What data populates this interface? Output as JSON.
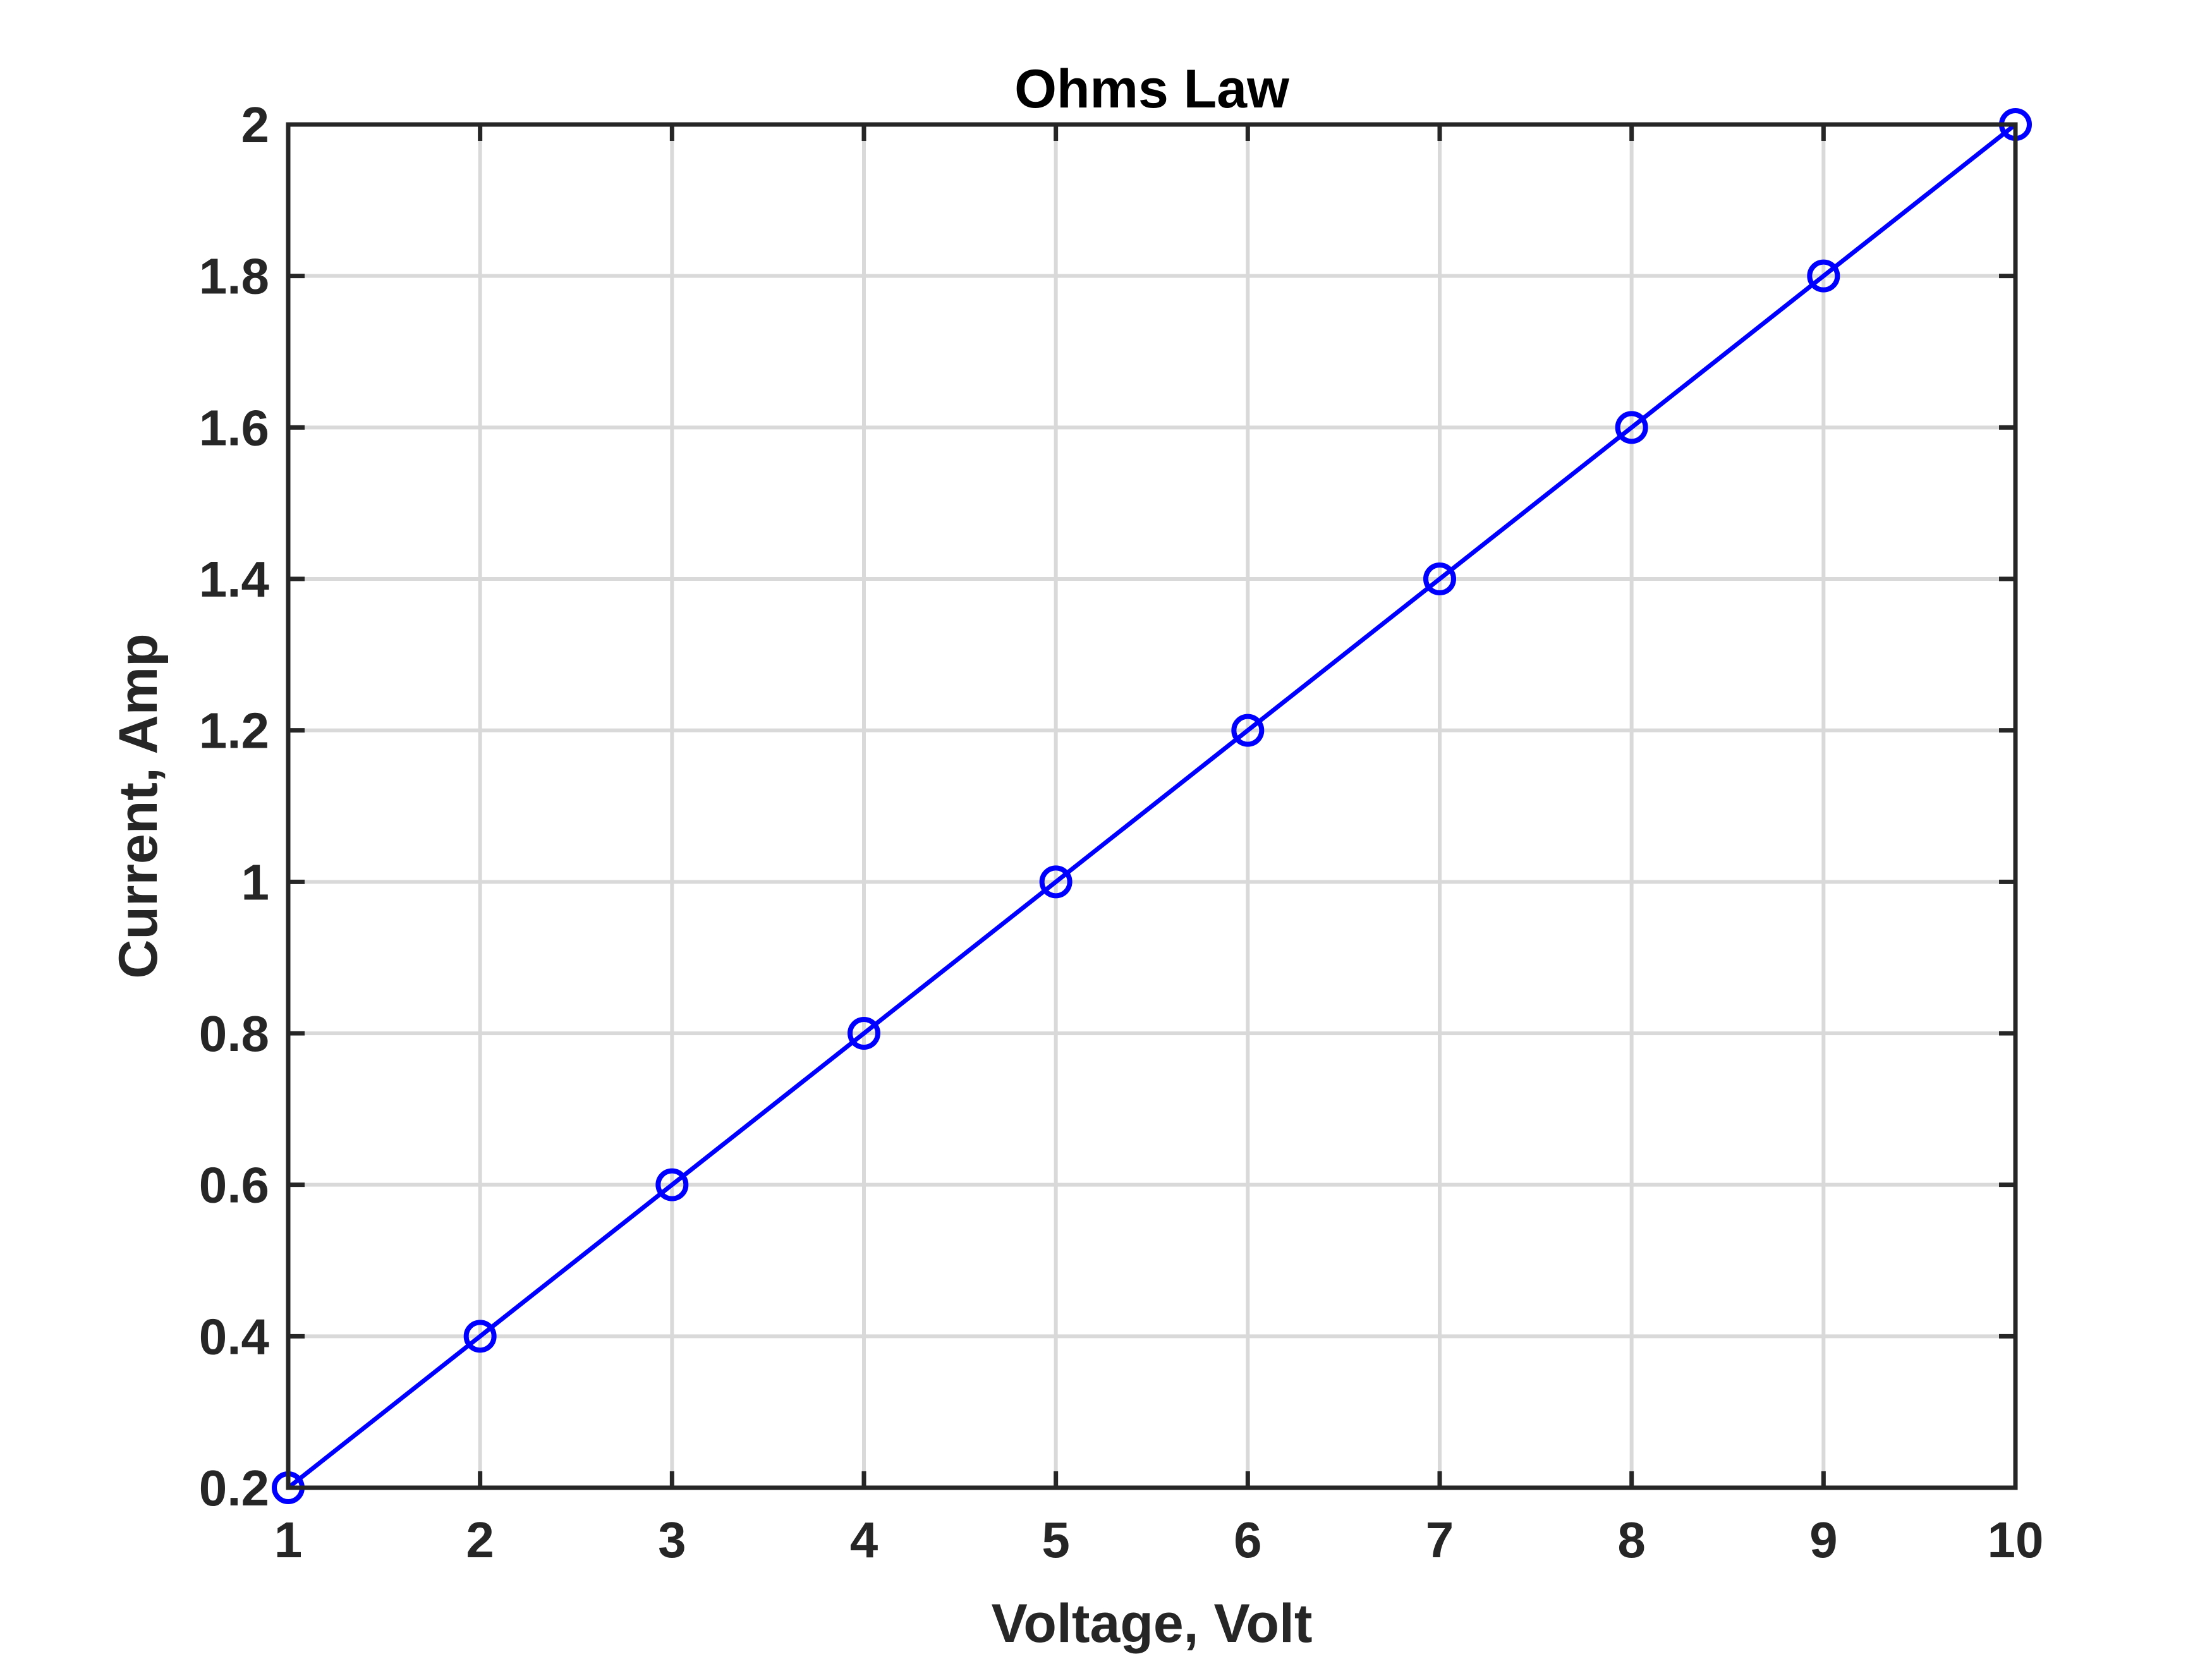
{
  "chart_data": {
    "type": "line",
    "title": "Ohms Law",
    "xlabel": "Voltage, Volt",
    "ylabel": "Current, Amp",
    "xlim": [
      1,
      10
    ],
    "ylim": [
      0.2,
      2
    ],
    "xticks": [
      1,
      2,
      3,
      4,
      5,
      6,
      7,
      8,
      9,
      10
    ],
    "yticks": [
      0.2,
      0.4,
      0.6,
      0.8,
      1,
      1.2,
      1.4,
      1.6,
      1.8,
      2
    ],
    "xtick_labels": [
      "1",
      "2",
      "3",
      "4",
      "5",
      "6",
      "7",
      "8",
      "9",
      "10"
    ],
    "ytick_labels": [
      "0.2",
      "0.4",
      "0.6",
      "0.8",
      "1",
      "1.2",
      "1.4",
      "1.6",
      "1.8",
      "2"
    ],
    "grid": true,
    "box": true,
    "series": [
      {
        "x": [
          1,
          2,
          3,
          4,
          5,
          6,
          7,
          8,
          9,
          10
        ],
        "y": [
          0.2,
          0.4,
          0.6,
          0.8,
          1.0,
          1.2,
          1.4,
          1.6,
          1.8,
          2.0
        ],
        "color": "#0000ff",
        "marker": "circle-open",
        "line": "solid"
      }
    ],
    "colors": {
      "axes": "#262626",
      "grid": "#d9d9d9",
      "background": "#ffffff"
    }
  }
}
